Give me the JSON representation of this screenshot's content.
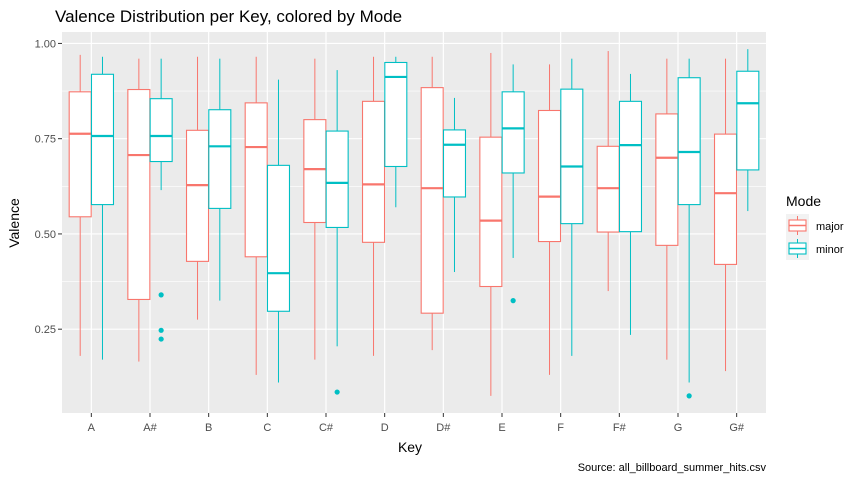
{
  "chart_data": {
    "type": "boxplot",
    "title": "Valence Distribution per Key, colored by Mode",
    "xlabel": "Key",
    "ylabel": "Valence",
    "caption": "Source: all_billboard_summer_hits.csv",
    "ylim": [
      0.03,
      1.03
    ],
    "y_ticks": [
      "1.00",
      "0.75",
      "0.50",
      "0.25"
    ],
    "y_tick_values": [
      1.0,
      0.75,
      0.5,
      0.25
    ],
    "categories": [
      "A",
      "A#",
      "B",
      "C",
      "C#",
      "D",
      "D#",
      "E",
      "F",
      "F#",
      "G",
      "G#"
    ],
    "grid": true,
    "legend": {
      "title": "Mode",
      "position": "right"
    },
    "series": [
      {
        "name": "major",
        "color": "#F8766D",
        "boxes": [
          {
            "min": 0.18,
            "q1": 0.545,
            "median": 0.763,
            "q3": 0.873,
            "max": 0.97,
            "outliers": []
          },
          {
            "min": 0.165,
            "q1": 0.328,
            "median": 0.707,
            "q3": 0.879,
            "max": 0.96,
            "outliers": []
          },
          {
            "min": 0.275,
            "q1": 0.428,
            "median": 0.628,
            "q3": 0.772,
            "max": 0.965,
            "outliers": []
          },
          {
            "min": 0.13,
            "q1": 0.44,
            "median": 0.728,
            "q3": 0.844,
            "max": 0.965,
            "outliers": []
          },
          {
            "min": 0.17,
            "q1": 0.53,
            "median": 0.67,
            "q3": 0.8,
            "max": 0.96,
            "outliers": []
          },
          {
            "min": 0.18,
            "q1": 0.478,
            "median": 0.63,
            "q3": 0.848,
            "max": 0.965,
            "outliers": []
          },
          {
            "min": 0.195,
            "q1": 0.292,
            "median": 0.62,
            "q3": 0.884,
            "max": 0.965,
            "outliers": []
          },
          {
            "min": 0.075,
            "q1": 0.362,
            "median": 0.535,
            "q3": 0.754,
            "max": 0.975,
            "outliers": []
          },
          {
            "min": 0.13,
            "q1": 0.48,
            "median": 0.598,
            "q3": 0.824,
            "max": 0.945,
            "outliers": []
          },
          {
            "min": 0.35,
            "q1": 0.505,
            "median": 0.62,
            "q3": 0.73,
            "max": 0.98,
            "outliers": []
          },
          {
            "min": 0.17,
            "q1": 0.47,
            "median": 0.7,
            "q3": 0.815,
            "max": 0.96,
            "outliers": []
          },
          {
            "min": 0.14,
            "q1": 0.42,
            "median": 0.607,
            "q3": 0.762,
            "max": 0.96,
            "outliers": []
          }
        ]
      },
      {
        "name": "minor",
        "color": "#00BFC4",
        "boxes": [
          {
            "min": 0.17,
            "q1": 0.577,
            "median": 0.757,
            "q3": 0.919,
            "max": 0.965,
            "outliers": []
          },
          {
            "min": 0.615,
            "q1": 0.69,
            "median": 0.757,
            "q3": 0.855,
            "max": 0.96,
            "outliers": [
              0.34,
              0.247,
              0.224
            ]
          },
          {
            "min": 0.325,
            "q1": 0.567,
            "median": 0.73,
            "q3": 0.826,
            "max": 0.96,
            "outliers": []
          },
          {
            "min": 0.11,
            "q1": 0.297,
            "median": 0.397,
            "q3": 0.68,
            "max": 0.905,
            "outliers": []
          },
          {
            "min": 0.205,
            "q1": 0.517,
            "median": 0.634,
            "q3": 0.77,
            "max": 0.93,
            "outliers": [
              0.085
            ]
          },
          {
            "min": 0.57,
            "q1": 0.677,
            "median": 0.912,
            "q3": 0.95,
            "max": 0.965,
            "outliers": []
          },
          {
            "min": 0.4,
            "q1": 0.597,
            "median": 0.734,
            "q3": 0.773,
            "max": 0.857,
            "outliers": []
          },
          {
            "min": 0.437,
            "q1": 0.66,
            "median": 0.777,
            "q3": 0.873,
            "max": 0.945,
            "outliers": [
              0.325
            ]
          },
          {
            "min": 0.18,
            "q1": 0.527,
            "median": 0.677,
            "q3": 0.88,
            "max": 0.96,
            "outliers": []
          },
          {
            "min": 0.235,
            "q1": 0.506,
            "median": 0.733,
            "q3": 0.848,
            "max": 0.92,
            "outliers": []
          },
          {
            "min": 0.11,
            "q1": 0.577,
            "median": 0.715,
            "q3": 0.91,
            "max": 0.96,
            "outliers": [
              0.075
            ]
          },
          {
            "min": 0.56,
            "q1": 0.668,
            "median": 0.843,
            "q3": 0.927,
            "max": 0.985,
            "outliers": []
          }
        ]
      }
    ]
  }
}
